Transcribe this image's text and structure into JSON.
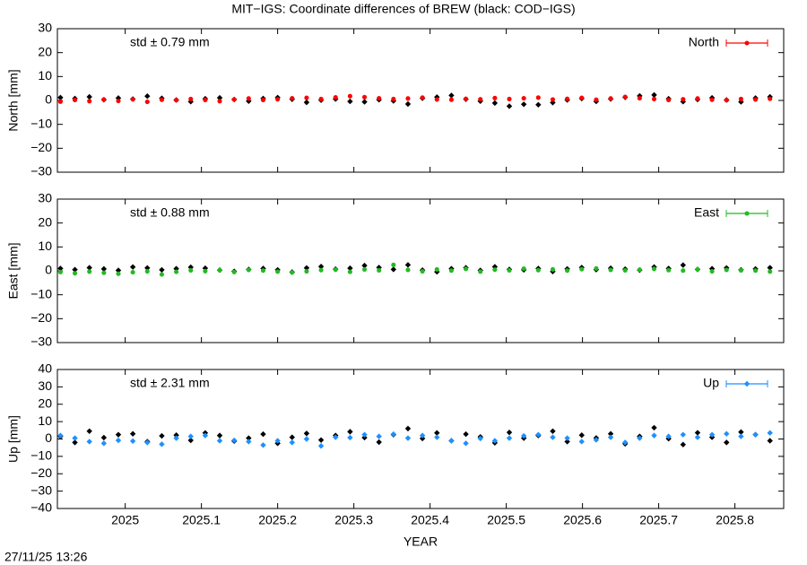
{
  "title": "MIT−IGS: Coordinate differences of BREW (black: COD−IGS)",
  "timestamp": "27/11/25 13:26",
  "chart_data": [
    {
      "type": "scatter",
      "ylabel": "North [mm]",
      "annotation": "std ± 0.79 mm",
      "legend": "top right",
      "xlim": [
        2024.911,
        2025.864
      ],
      "xticks": [
        2025,
        2025.1,
        2025.2,
        2025.3,
        2025.4,
        2025.5,
        2025.6,
        2025.7,
        2025.8
      ],
      "ylim": [
        -30,
        30
      ],
      "yticks": [
        {
          "value": -30,
          "label": "−30"
        },
        {
          "value": -20,
          "label": "−20"
        },
        {
          "value": -10,
          "label": "−10"
        },
        0,
        10,
        20,
        30
      ],
      "x": [
        2024.915,
        2024.934,
        2024.953,
        2024.972,
        2024.991,
        2025.01,
        2025.029,
        2025.048,
        2025.067,
        2025.086,
        2025.105,
        2025.124,
        2025.143,
        2025.162,
        2025.181,
        2025.2,
        2025.219,
        2025.238,
        2025.257,
        2025.276,
        2025.295,
        2025.314,
        2025.333,
        2025.352,
        2025.371,
        2025.39,
        2025.409,
        2025.428,
        2025.447,
        2025.466,
        2025.485,
        2025.504,
        2025.523,
        2025.542,
        2025.561,
        2025.58,
        2025.599,
        2025.618,
        2025.637,
        2025.656,
        2025.675,
        2025.694,
        2025.713,
        2025.732,
        2025.751,
        2025.77,
        2025.789,
        2025.808,
        2025.827,
        2025.846
      ],
      "series": [
        {
          "color": "#000000",
          "marker": "diamond",
          "values": [
            1.2,
            0.8,
            1.5,
            0.3,
            1.0,
            0.6,
            1.8,
            0.9,
            0.2,
            -0.5,
            0.7,
            1.1,
            0.4,
            -0.3,
            0.8,
            1.2,
            0.5,
            -0.8,
            0.1,
            0.6,
            -0.4,
            -0.6,
            0.3,
            -0.2,
            -1.5,
            0.9,
            1.4,
            2.1,
            0.5,
            -0.3,
            -1.1,
            -2.4,
            -1.6,
            -1.8,
            -0.9,
            0.2,
            0.8,
            -0.4,
            0.6,
            1.3,
            1.9,
            2.3,
            0.7,
            -0.5,
            0.4,
            1.1,
            0.2,
            -0.6,
            1.0,
            1.5
          ]
        },
        {
          "name": "North",
          "color": "#ff0000",
          "marker": "circle",
          "values": [
            -0.5,
            0.2,
            -0.3,
            0.4,
            -0.2,
            0.5,
            -0.6,
            0.3,
            0.1,
            0.6,
            0.2,
            -0.3,
            0.4,
            0.8,
            0.2,
            0.5,
            0.9,
            1.1,
            0.6,
            1.3,
            1.8,
            1.4,
            0.9,
            0.6,
            0.8,
            1.2,
            0.4,
            0.3,
            0.7,
            0.5,
            1.0,
            0.6,
            0.9,
            1.2,
            0.4,
            0.7,
            1.1,
            0.3,
            0.8,
            1.5,
            0.9,
            0.6,
            0.2,
            0.5,
            0.8,
            0.3,
            0.1,
            0.6,
            0.4,
            0.7
          ]
        }
      ]
    },
    {
      "type": "scatter",
      "ylabel": "East [mm]",
      "annotation": "std ± 0.88 mm",
      "legend": "top right",
      "xlim": [
        2024.911,
        2025.864
      ],
      "xticks": [
        2025,
        2025.1,
        2025.2,
        2025.3,
        2025.4,
        2025.5,
        2025.6,
        2025.7,
        2025.8
      ],
      "ylim": [
        -30,
        30
      ],
      "yticks": [
        {
          "value": -30,
          "label": "−30"
        },
        {
          "value": -20,
          "label": "−20"
        },
        {
          "value": -10,
          "label": "−10"
        },
        0,
        10,
        20,
        30
      ],
      "x": [
        2024.915,
        2024.934,
        2024.953,
        2024.972,
        2024.991,
        2025.01,
        2025.029,
        2025.048,
        2025.067,
        2025.086,
        2025.105,
        2025.124,
        2025.143,
        2025.162,
        2025.181,
        2025.2,
        2025.219,
        2025.238,
        2025.257,
        2025.276,
        2025.295,
        2025.314,
        2025.333,
        2025.352,
        2025.371,
        2025.39,
        2025.409,
        2025.428,
        2025.447,
        2025.466,
        2025.485,
        2025.504,
        2025.523,
        2025.542,
        2025.561,
        2025.58,
        2025.599,
        2025.618,
        2025.637,
        2025.656,
        2025.675,
        2025.694,
        2025.713,
        2025.732,
        2025.751,
        2025.77,
        2025.789,
        2025.808,
        2025.827,
        2025.846
      ],
      "series": [
        {
          "color": "#000000",
          "marker": "diamond",
          "values": [
            1.0,
            0.5,
            1.3,
            0.8,
            0.2,
            1.6,
            1.2,
            0.4,
            0.9,
            1.5,
            1.1,
            0.3,
            -0.2,
            0.6,
            1.0,
            0.4,
            -0.5,
            1.2,
            1.8,
            0.7,
            1.1,
            2.2,
            1.4,
            0.6,
            2.5,
            0.3,
            -0.4,
            0.9,
            1.3,
            0.2,
            1.7,
            0.6,
            0.4,
            1.0,
            -0.3,
            0.8,
            1.4,
            0.5,
            1.1,
            0.7,
            0.3,
            1.6,
            1.0,
            2.4,
            0.6,
            0.9,
            1.2,
            0.4,
            0.8,
            1.3
          ]
        },
        {
          "name": "East",
          "color": "#22bb22",
          "marker": "circle",
          "values": [
            -0.5,
            -1.0,
            -0.3,
            -0.8,
            -1.2,
            -0.6,
            -0.2,
            -1.5,
            -0.4,
            0.2,
            -0.1,
            0.3,
            -0.5,
            0.4,
            0.1,
            -0.3,
            -0.7,
            -0.2,
            0.3,
            0.5,
            -0.4,
            0.6,
            0.2,
            2.5,
            0.4,
            -0.2,
            0.6,
            0.1,
            0.8,
            -0.3,
            0.5,
            0.2,
            0.9,
            0.3,
            0.6,
            0.1,
            0.7,
            1.0,
            0.4,
            0.2,
            0.5,
            0.8,
            0.3,
            0.1,
            0.6,
            -0.2,
            0.4,
            0.2,
            0.1,
            -0.3
          ]
        }
      ]
    },
    {
      "type": "scatter",
      "ylabel": "Up [mm]",
      "xlabel": "YEAR",
      "annotation": "std ± 2.31 mm",
      "legend": "top right",
      "xlim": [
        2024.911,
        2025.864
      ],
      "xticks": [
        2025,
        2025.1,
        2025.2,
        2025.3,
        2025.4,
        2025.5,
        2025.6,
        2025.7,
        2025.8
      ],
      "ylim": [
        -40,
        40
      ],
      "yticks": [
        {
          "value": -40,
          "label": "−40"
        },
        {
          "value": -30,
          "label": "−30"
        },
        {
          "value": -20,
          "label": "−20"
        },
        {
          "value": -10,
          "label": "−10"
        },
        0,
        10,
        20,
        30,
        40
      ],
      "x": [
        2024.915,
        2024.934,
        2024.953,
        2024.972,
        2024.991,
        2025.01,
        2025.029,
        2025.048,
        2025.067,
        2025.086,
        2025.105,
        2025.124,
        2025.143,
        2025.162,
        2025.181,
        2025.2,
        2025.219,
        2025.238,
        2025.257,
        2025.276,
        2025.295,
        2025.314,
        2025.333,
        2025.352,
        2025.371,
        2025.39,
        2025.409,
        2025.428,
        2025.447,
        2025.466,
        2025.485,
        2025.504,
        2025.523,
        2025.542,
        2025.561,
        2025.58,
        2025.599,
        2025.618,
        2025.637,
        2025.656,
        2025.675,
        2025.694,
        2025.713,
        2025.732,
        2025.751,
        2025.77,
        2025.789,
        2025.808,
        2025.827,
        2025.846
      ],
      "series": [
        {
          "color": "#000000",
          "marker": "diamond",
          "values": [
            1.5,
            -2.0,
            4.5,
            0.8,
            2.5,
            3.0,
            -1.5,
            1.8,
            2.2,
            -0.8,
            3.5,
            2.0,
            -1.2,
            0.5,
            2.8,
            -2.5,
            1.0,
            3.2,
            -0.6,
            2.0,
            4.2,
            0.8,
            -1.8,
            2.5,
            6.0,
            0.3,
            3.5,
            -1.0,
            2.8,
            1.2,
            -2.2,
            3.8,
            0.5,
            2.0,
            4.5,
            -1.5,
            2.2,
            0.6,
            3.0,
            -2.8,
            1.5,
            6.5,
            0.2,
            -3.2,
            3.6,
            1.0,
            -2.0,
            4.0,
            2.5,
            -1.0
          ]
        },
        {
          "name": "Up",
          "color": "#1e90ff",
          "marker": "diamond",
          "values": [
            2.0,
            0.5,
            -1.5,
            -2.5,
            -0.8,
            -1.2,
            -2.0,
            -3.0,
            0.5,
            1.5,
            2.0,
            -1.0,
            -0.8,
            -1.5,
            -3.5,
            -1.0,
            -2.0,
            0.0,
            -4.0,
            1.0,
            0.8,
            2.5,
            1.5,
            2.8,
            0.5,
            2.0,
            1.0,
            -1.0,
            -2.5,
            0.3,
            -1.0,
            0.5,
            1.8,
            2.5,
            1.0,
            0.5,
            -1.5,
            -0.5,
            1.0,
            -2.0,
            0.5,
            2.0,
            1.5,
            2.5,
            1.0,
            2.5,
            3.0,
            1.5,
            2.5,
            3.5
          ]
        }
      ]
    }
  ]
}
